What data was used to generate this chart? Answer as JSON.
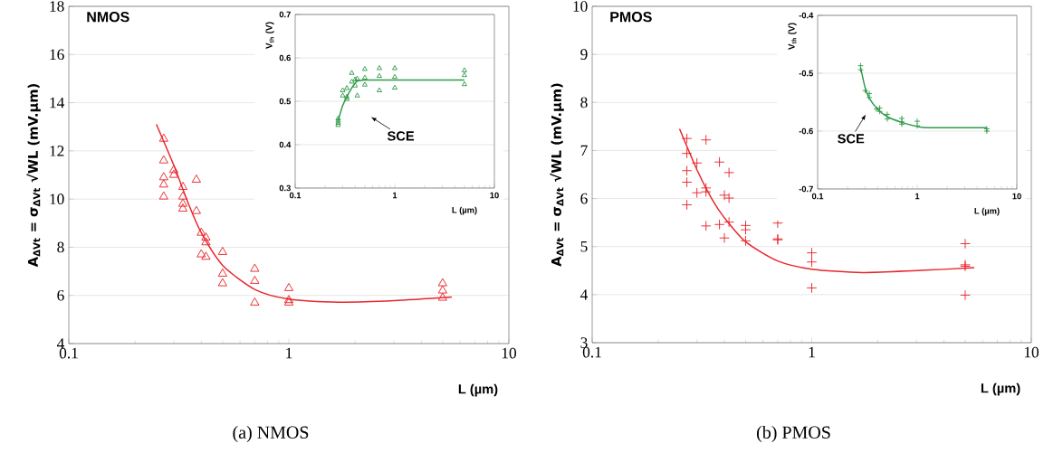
{
  "chart_data": [
    {
      "type": "scatter",
      "title": "NMOS",
      "xlabel": "L (µm)",
      "ylabel": "A$_{ΔVt}$ = σ$_{ΔVt}$ √WL  (mV.µm)",
      "log": "x",
      "xlim": [
        0.1,
        10
      ],
      "xticks": [
        0.1,
        1,
        10
      ],
      "ylim": [
        4,
        18
      ],
      "yticks": [
        4,
        6,
        8,
        10,
        12,
        14,
        16,
        18
      ],
      "grid": "y",
      "annotations": [
        "(a) NMOS"
      ],
      "series": [
        {
          "marker": "triangle",
          "color": "#e8252b",
          "x": [
            0.27,
            0.27,
            0.27,
            0.27,
            0.27,
            0.3,
            0.3,
            0.33,
            0.33,
            0.33,
            0.33,
            0.38,
            0.38,
            0.4,
            0.4,
            0.42,
            0.42,
            0.42,
            0.5,
            0.5,
            0.5,
            0.7,
            0.7,
            0.7,
            1,
            1,
            1,
            5,
            5,
            5
          ],
          "values": [
            12.5,
            11.6,
            10.9,
            10.6,
            10.1,
            11.2,
            11.0,
            10.5,
            10.1,
            9.8,
            9.6,
            10.8,
            9.5,
            8.6,
            7.7,
            8.4,
            8.2,
            7.6,
            7.8,
            6.9,
            6.5,
            7.1,
            6.6,
            5.7,
            6.3,
            5.8,
            5.7,
            6.5,
            6.2,
            5.9
          ]
        },
        {
          "type": "line",
          "marker": "none",
          "color": "#e8252b",
          "x": [
            0.25,
            0.3,
            0.35,
            0.4,
            0.5,
            0.7,
            1,
            1.7,
            3,
            5.5
          ],
          "values": [
            13.1,
            11.4,
            9.8,
            8.6,
            7.25,
            6.25,
            5.85,
            5.72,
            5.78,
            5.93
          ]
        }
      ]
    },
    {
      "type": "scatter",
      "xlabel": "L (µm)",
      "ylabel": "V$_{th}$ (V)",
      "log": "x",
      "xlim": [
        0.1,
        10
      ],
      "xticks": [
        0.1,
        1,
        10
      ],
      "ylim": [
        0.3,
        0.7
      ],
      "yticks": [
        0.3,
        0.4,
        0.5,
        0.6,
        0.7
      ],
      "grid": "y",
      "annotations": [
        "SCE"
      ],
      "series": [
        {
          "marker": "triangle",
          "color": "#2e9b48",
          "x": [
            0.27,
            0.27,
            0.27,
            0.27,
            0.3,
            0.3,
            0.33,
            0.33,
            0.33,
            0.37,
            0.37,
            0.4,
            0.4,
            0.42,
            0.42,
            0.5,
            0.5,
            0.5,
            0.7,
            0.7,
            0.7,
            1,
            1,
            1,
            5,
            5,
            5
          ],
          "values": [
            0.46,
            0.455,
            0.45,
            0.445,
            0.525,
            0.513,
            0.53,
            0.51,
            0.505,
            0.565,
            0.545,
            0.55,
            0.536,
            0.552,
            0.513,
            0.574,
            0.554,
            0.538,
            0.576,
            0.558,
            0.525,
            0.576,
            0.556,
            0.531,
            0.571,
            0.56,
            0.539
          ]
        },
        {
          "type": "line",
          "marker": "none",
          "color": "#2e9b48",
          "x": [
            0.27,
            0.3,
            0.33,
            0.38,
            0.42,
            0.5,
            1,
            5
          ],
          "values": [
            0.455,
            0.49,
            0.51,
            0.535,
            0.546,
            0.549,
            0.549,
            0.549
          ]
        }
      ]
    },
    {
      "type": "scatter",
      "title": "PMOS",
      "xlabel": "L (µm)",
      "ylabel": "A$_{ΔVt}$ = σ$_{ΔVt}$ √WL  (mV.µm)",
      "log": "x",
      "xlim": [
        0.1,
        10
      ],
      "xticks": [
        0.1,
        1,
        10
      ],
      "ylim": [
        3,
        10
      ],
      "yticks": [
        3,
        4,
        5,
        6,
        7,
        8,
        9,
        10
      ],
      "grid": "y",
      "annotations": [
        "(b) PMOS"
      ],
      "series": [
        {
          "marker": "cross",
          "color": "#e8252b",
          "x": [
            0.27,
            0.27,
            0.27,
            0.27,
            0.27,
            0.3,
            0.3,
            0.33,
            0.33,
            0.33,
            0.33,
            0.38,
            0.38,
            0.4,
            0.4,
            0.42,
            0.42,
            0.42,
            0.5,
            0.5,
            0.5,
            0.7,
            0.7,
            0.7,
            1,
            1,
            1,
            5,
            5,
            5,
            5
          ],
          "values": [
            7.25,
            6.94,
            6.58,
            6.34,
            5.87,
            6.74,
            6.12,
            7.22,
            6.22,
            6.14,
            5.43,
            6.76,
            5.46,
            6.07,
            5.18,
            6.54,
            6.01,
            5.51,
            5.44,
            5.35,
            5.12,
            5.49,
            5.16,
            5.14,
            4.87,
            4.68,
            4.14,
            5.06,
            4.62,
            4.59,
            3.99
          ]
        },
        {
          "type": "line",
          "marker": "none",
          "color": "#e8252b",
          "x": [
            0.25,
            0.3,
            0.35,
            0.4,
            0.5,
            0.7,
            1,
            1.7,
            3,
            5.5
          ],
          "values": [
            7.45,
            6.6,
            6.0,
            5.6,
            5.1,
            4.7,
            4.53,
            4.46,
            4.5,
            4.56
          ]
        }
      ]
    },
    {
      "type": "scatter",
      "xlabel": "L (µm)",
      "ylabel": "V$_{th}$ (V)",
      "log": "x",
      "xlim": [
        0.1,
        10
      ],
      "xticks": [
        0.1,
        1,
        10
      ],
      "ylim": [
        -0.7,
        -0.4
      ],
      "yticks": [
        -0.7,
        -0.6,
        -0.5,
        -0.4
      ],
      "grid": "y",
      "annotations": [
        "SCE"
      ],
      "series": [
        {
          "marker": "cross",
          "color": "#2e9b48",
          "x": [
            0.27,
            0.27,
            0.3,
            0.33,
            0.33,
            0.39,
            0.42,
            0.42,
            0.5,
            0.5,
            0.7,
            0.7,
            0.7,
            1,
            1,
            5,
            5
          ],
          "values": [
            -0.487,
            -0.494,
            -0.53,
            -0.535,
            -0.542,
            -0.562,
            -0.56,
            -0.566,
            -0.571,
            -0.579,
            -0.578,
            -0.584,
            -0.588,
            -0.583,
            -0.591,
            -0.596,
            -0.6
          ]
        },
        {
          "type": "line",
          "marker": "none",
          "color": "#2e9b48",
          "x": [
            0.27,
            0.3,
            0.33,
            0.4,
            0.5,
            0.7,
            1,
            1.3,
            5
          ],
          "values": [
            -0.49,
            -0.525,
            -0.543,
            -0.562,
            -0.575,
            -0.585,
            -0.592,
            -0.594,
            -0.594
          ]
        }
      ]
    }
  ]
}
